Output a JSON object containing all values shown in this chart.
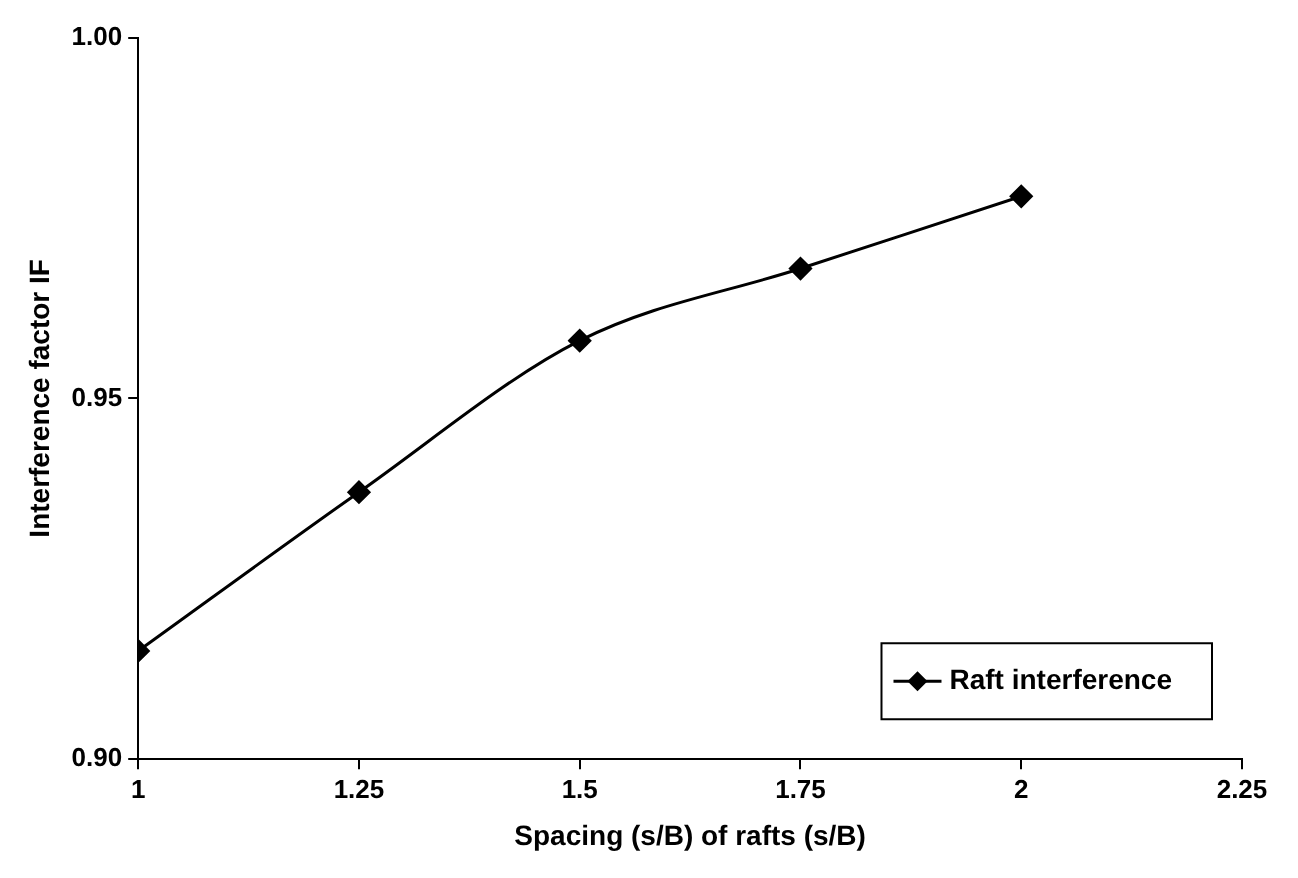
{
  "chart_data": {
    "type": "line",
    "xlabel": "Spacing (s/B) of rafts (s/B)",
    "ylabel": "Interference factor IF",
    "x": [
      1,
      1.25,
      1.5,
      1.75,
      2
    ],
    "series": [
      {
        "name": "Raft interference",
        "color": "#000000",
        "values": [
          0.915,
          0.937,
          0.958,
          0.968,
          0.978
        ]
      }
    ],
    "xlim": [
      1,
      2.25
    ],
    "xticks": [
      1,
      1.25,
      1.5,
      1.75,
      2,
      2.25
    ],
    "ylim": [
      0.9,
      1.0
    ],
    "yticks": [
      {
        "value": 0.9,
        "label": "0.90"
      },
      {
        "value": 0.95,
        "label": "0.95"
      },
      {
        "value": 1.0,
        "label": "1.00"
      }
    ],
    "grid": false,
    "legend": "bottom right",
    "marker": "diamond",
    "line_style": "solid"
  }
}
